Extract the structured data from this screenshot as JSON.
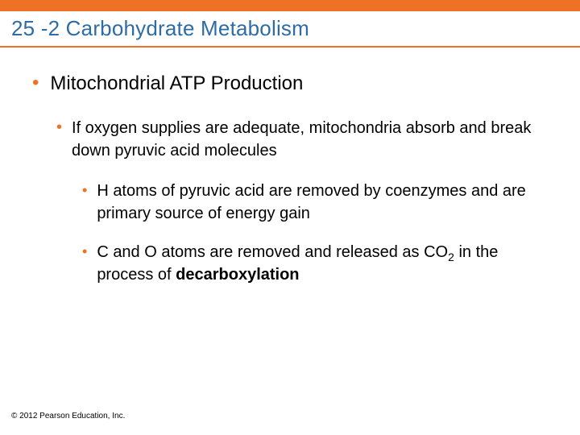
{
  "colors": {
    "orange": "#ee7125",
    "title": "#2e6ca4",
    "bullet": "#ee7125",
    "text": "#000000",
    "background": "#ffffff"
  },
  "title": "25 -2 Carbohydrate Metabolism",
  "level1": {
    "text": "Mitochondrial ATP Production"
  },
  "level2": {
    "text": "If oxygen supplies are adequate, mitochondria absorb and break down pyruvic acid molecules"
  },
  "level3a": {
    "text": "H atoms of pyruvic acid are removed by coenzymes and are primary source of energy gain"
  },
  "level3b": {
    "prefix": "C and O atoms are removed and released as CO",
    "sub": "2",
    "mid": " in the process of ",
    "bold": "decarboxylation"
  },
  "copyright": "© 2012 Pearson Education, Inc.",
  "typography": {
    "title_fontsize": 26,
    "level1_fontsize": 24,
    "level2_fontsize": 20,
    "level3_fontsize": 20,
    "copyright_fontsize": 10,
    "font_family": "Arial"
  }
}
